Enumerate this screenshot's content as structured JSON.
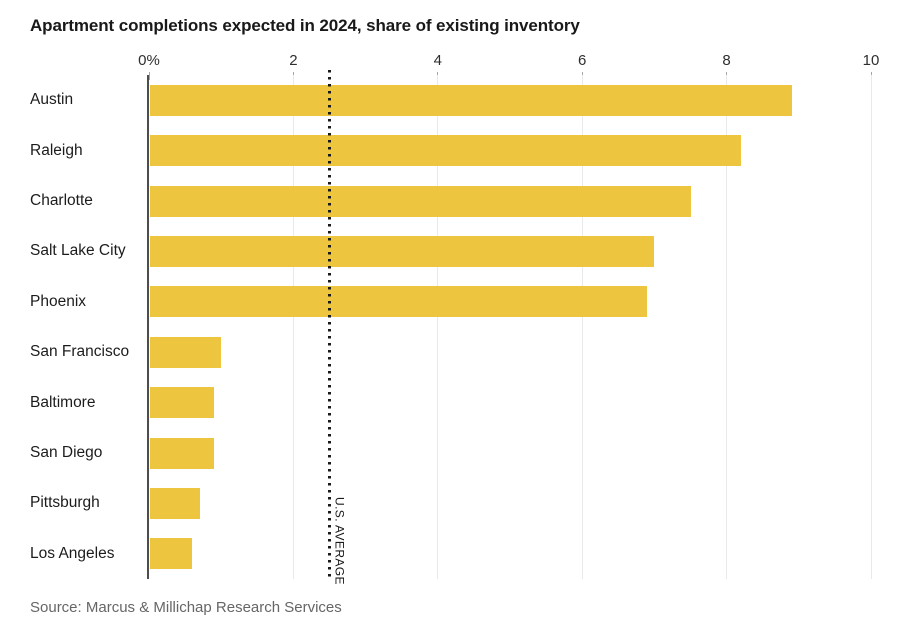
{
  "chart_data": {
    "type": "bar",
    "orientation": "horizontal",
    "title": "Apartment completions expected in 2024, share of existing inventory",
    "categories": [
      "Austin",
      "Raleigh",
      "Charlotte",
      "Salt Lake City",
      "Phoenix",
      "San Francisco",
      "Baltimore",
      "San Diego",
      "Pittsburgh",
      "Los Angeles"
    ],
    "values": [
      8.9,
      8.2,
      7.5,
      7.0,
      6.9,
      1.0,
      0.9,
      0.9,
      0.7,
      0.6
    ],
    "value_unit": "%",
    "xlim": [
      0,
      10
    ],
    "x_ticks": [
      {
        "value": 0,
        "label": "0%"
      },
      {
        "value": 2,
        "label": "2"
      },
      {
        "value": 4,
        "label": "4"
      },
      {
        "value": 6,
        "label": "6"
      },
      {
        "value": 8,
        "label": "8"
      },
      {
        "value": 10,
        "label": "10"
      }
    ],
    "grid": true,
    "legend": "none",
    "reference_line": {
      "value": 2.5,
      "label": "U.S. AVERAGE"
    },
    "source": "Source: Marcus & Millichap Research Services",
    "colors": {
      "bar": "#EDC53F",
      "reference_line": "#1a1a1a",
      "gridline": "#e9e9e9",
      "zero_axis": "#4d4d4d",
      "title_text": "#191919",
      "category_text": "#1c1c1c",
      "tick_text": "#2e2e2e",
      "source_text": "#666666",
      "background": "#ffffff"
    }
  }
}
